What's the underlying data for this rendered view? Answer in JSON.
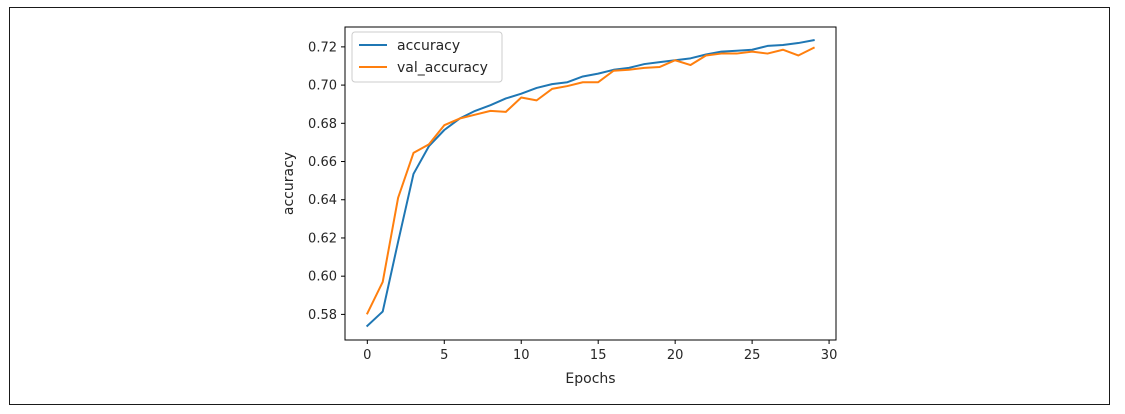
{
  "chart_data": {
    "type": "line",
    "xlabel": "Epochs",
    "ylabel": "accuracy",
    "xlim": [
      -1.45,
      30.45
    ],
    "ylim": [
      0.5666,
      0.7304
    ],
    "x_ticks": [
      0,
      5,
      10,
      15,
      20,
      25,
      30
    ],
    "y_ticks": [
      0.58,
      0.6,
      0.62,
      0.64,
      0.66,
      0.68,
      0.7,
      0.72
    ],
    "x_tick_labels": [
      "0",
      "5",
      "10",
      "15",
      "20",
      "25",
      "30"
    ],
    "y_tick_labels": [
      "0.58",
      "0.60",
      "0.62",
      "0.64",
      "0.66",
      "0.68",
      "0.70",
      "0.72"
    ],
    "grid": false,
    "legend_position": "upper-left",
    "x": [
      0,
      1,
      2,
      3,
      4,
      5,
      6,
      7,
      8,
      9,
      10,
      11,
      12,
      13,
      14,
      15,
      16,
      17,
      18,
      19,
      20,
      21,
      22,
      23,
      24,
      25,
      26,
      27,
      28,
      29
    ],
    "series": [
      {
        "name": "accuracy",
        "color": "#1f77b4",
        "values": [
          0.574,
          0.5815,
          0.618,
          0.6535,
          0.668,
          0.6765,
          0.6825,
          0.6865,
          0.6895,
          0.693,
          0.6955,
          0.6985,
          0.7005,
          0.7015,
          0.7045,
          0.706,
          0.708,
          0.709,
          0.711,
          0.712,
          0.713,
          0.714,
          0.716,
          0.7175,
          0.718,
          0.7185,
          0.7205,
          0.721,
          0.722,
          0.7235
        ]
      },
      {
        "name": "val_accuracy",
        "color": "#ff7f0e",
        "values": [
          0.5805,
          0.597,
          0.641,
          0.6645,
          0.669,
          0.679,
          0.6825,
          0.6845,
          0.6865,
          0.686,
          0.6935,
          0.692,
          0.698,
          0.6995,
          0.7015,
          0.7015,
          0.7075,
          0.708,
          0.709,
          0.7095,
          0.713,
          0.7105,
          0.7155,
          0.7165,
          0.7165,
          0.7175,
          0.7165,
          0.7185,
          0.7155,
          0.7195
        ]
      }
    ]
  }
}
